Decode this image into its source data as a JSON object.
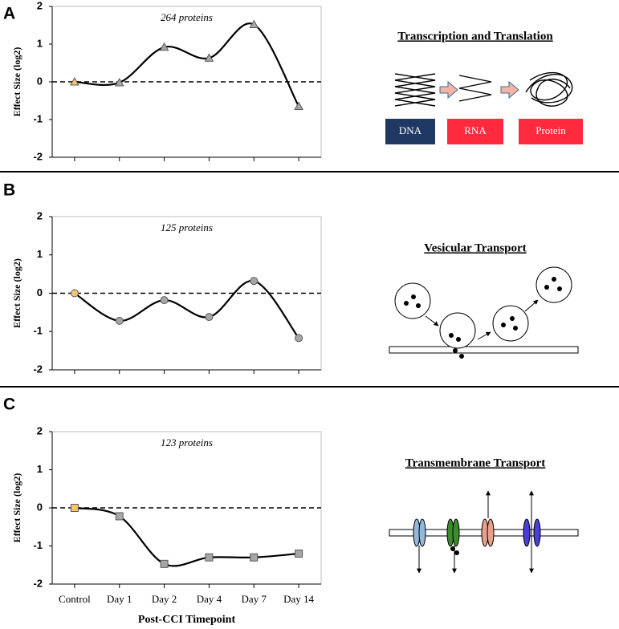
{
  "chart_data": [
    {
      "type": "line",
      "label": "A",
      "annotation": "264 proteins",
      "ylabel": "Effect Size (log2)",
      "marker": "triangle",
      "categories": [
        null,
        null,
        null,
        null,
        null,
        null
      ],
      "values": [
        0,
        -0.02,
        0.92,
        0.63,
        1.52,
        -0.65
      ],
      "point_colors": [
        "#f7c56b",
        "#a6a6a6",
        "#a6a6a6",
        "#a6a6a6",
        "#a6a6a6",
        "#a6a6a6"
      ],
      "ylim": [
        -2,
        2
      ],
      "yticks": [
        -2,
        -1,
        0,
        1,
        2
      ]
    },
    {
      "type": "line",
      "label": "B",
      "annotation": "125 proteins",
      "ylabel": "Effect Size (log2)",
      "marker": "circle",
      "categories": [
        null,
        null,
        null,
        null,
        null,
        null
      ],
      "values": [
        0,
        -0.72,
        -0.18,
        -0.62,
        0.32,
        -1.17
      ],
      "point_colors": [
        "#f7c56b",
        "#a6a6a6",
        "#a6a6a6",
        "#a6a6a6",
        "#a6a6a6",
        "#a6a6a6"
      ],
      "ylim": [
        -2,
        2
      ],
      "yticks": [
        -2,
        -1,
        0,
        1,
        2
      ]
    },
    {
      "type": "line",
      "label": "C",
      "annotation": "123 proteins",
      "ylabel": "Effect Size (log2)",
      "xlabel": "Post-CCI Timepoint",
      "marker": "square",
      "categories": [
        "Control",
        "Day 1",
        "Day 2",
        "Day 4",
        "Day 7",
        "Day 14"
      ],
      "values": [
        0,
        -0.22,
        -1.47,
        -1.3,
        -1.3,
        -1.2
      ],
      "point_colors": [
        "#f7c56b",
        "#a6a6a6",
        "#a6a6a6",
        "#a6a6a6",
        "#a6a6a6",
        "#a6a6a6"
      ],
      "ylim": [
        -2,
        2
      ],
      "yticks": [
        -2,
        -1,
        0,
        1,
        2
      ]
    }
  ],
  "diagrams": [
    {
      "title": "Transcription and Translation",
      "boxes": [
        "DNA",
        "RNA",
        "Protein"
      ]
    },
    {
      "title": "Vesicular Transport"
    },
    {
      "title": "Transmembrane Transport"
    }
  ]
}
